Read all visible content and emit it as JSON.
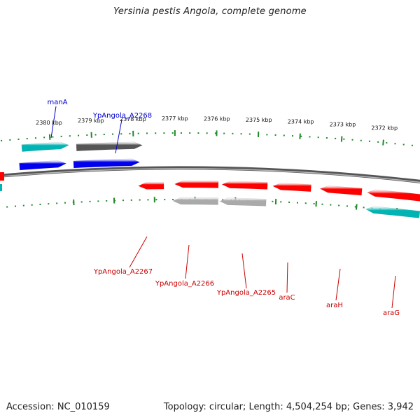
{
  "title": "Yersinia pestis Angola, complete genome",
  "footer": {
    "accession": "Accession: NC_010159",
    "summary": "Topology: circular; Length: 4,504,254 bp; Genes: 3,942"
  },
  "colors": {
    "backbone": "#808080",
    "tick": "#1f8a2a",
    "cds_forward": "#0000ee",
    "cds_reverse": "#ff0000",
    "rna_forward": "#00b4b4",
    "pseudo_forward": "#555555",
    "pseudo_reverse": "#aaaaaa",
    "label_forward": "#0000cc",
    "label_reverse": "#cc0000"
  },
  "ruler": {
    "labels": [
      "2380 kbp",
      "2379 kbp",
      "2378 kbp",
      "2377 kbp",
      "2376 kbp",
      "2375 kbp",
      "2374 kbp",
      "2373 kbp",
      "2372 kbp"
    ]
  },
  "features": [
    {
      "name": "manA",
      "strand": "forward",
      "type": "rna"
    },
    {
      "name": "manA",
      "strand": "forward",
      "type": "cds"
    },
    {
      "name": "YpAngola_A2268",
      "strand": "forward",
      "type": "pseudo"
    },
    {
      "name": "YpAngola_A2268",
      "strand": "forward",
      "type": "cds"
    },
    {
      "name": "YpAngola_A2267",
      "strand": "reverse",
      "type": "cds"
    },
    {
      "name": "YpAngola_A2266",
      "strand": "reverse",
      "type": "cds"
    },
    {
      "name": "YpAngola_A2266",
      "strand": "reverse",
      "type": "pseudo"
    },
    {
      "name": "YpAngola_A2265",
      "strand": "reverse",
      "type": "cds"
    },
    {
      "name": "YpAngola_A2265",
      "strand": "reverse",
      "type": "pseudo"
    },
    {
      "name": "araC",
      "strand": "reverse",
      "type": "cds"
    },
    {
      "name": "araH",
      "strand": "reverse",
      "type": "cds"
    },
    {
      "name": "araG",
      "strand": "reverse",
      "type": "cds"
    },
    {
      "name": "araG",
      "strand": "reverse",
      "type": "rna"
    }
  ],
  "labels": [
    {
      "text": "manA",
      "strand": "forward"
    },
    {
      "text": "YpAngola_A2268",
      "strand": "forward"
    },
    {
      "text": "YpAngola_A2267",
      "strand": "reverse"
    },
    {
      "text": "YpAngola_A2266",
      "strand": "reverse"
    },
    {
      "text": "YpAngola_A2265",
      "strand": "reverse"
    },
    {
      "text": "araC",
      "strand": "reverse"
    },
    {
      "text": "araH",
      "strand": "reverse"
    },
    {
      "text": "araG",
      "strand": "reverse"
    }
  ]
}
